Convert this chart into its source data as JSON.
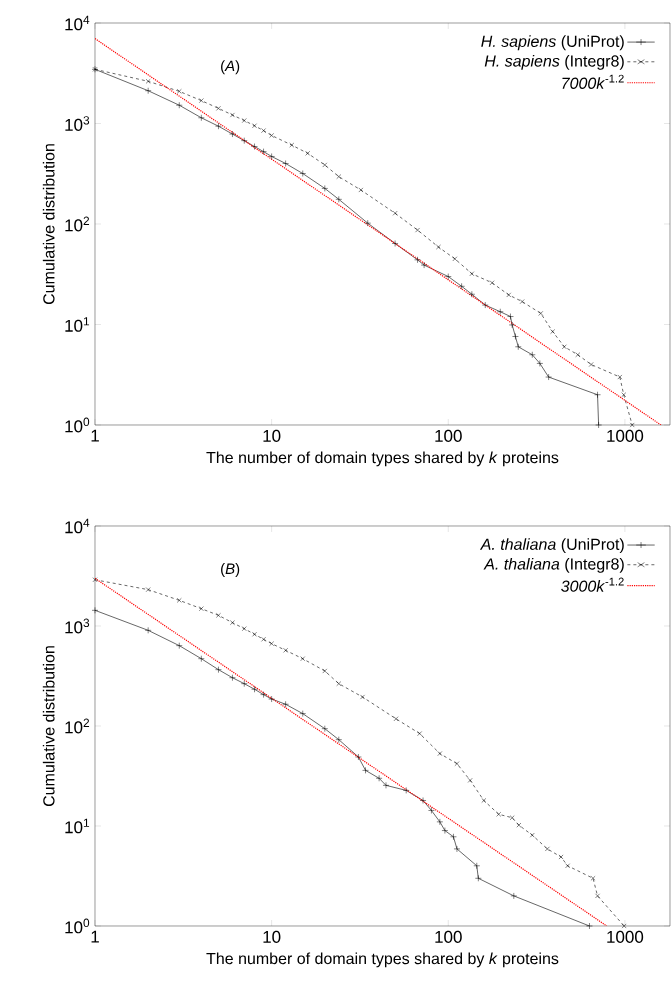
{
  "chart_data": [
    {
      "type": "line",
      "xlabel": "The number of domain types shared by *k* proteins",
      "ylabel": "Cumulative distribution",
      "annotations": [
        "(*A*)"
      ],
      "log": "xy",
      "xlim": [
        1,
        1800
      ],
      "ylim": [
        1,
        10000
      ],
      "xticks": [
        1,
        10,
        100,
        1000
      ],
      "yticks": [
        {
          "value": 1,
          "label": "10$^{0}$"
        },
        {
          "value": 10,
          "label": "10$^{1}$"
        },
        {
          "value": 100,
          "label": "10$^{2}$"
        },
        {
          "value": 1000,
          "label": "10$^{3}$"
        },
        {
          "value": 10000,
          "label": "10$^{4}$"
        }
      ],
      "legend": "top right",
      "grid": false,
      "series": [
        {
          "name": "*H. sapiens* (UniProt)",
          "color": "#000000",
          "marker": "plus",
          "line_style": "solid",
          "x": [
            1,
            2,
            3,
            4,
            5,
            6,
            7,
            8,
            9,
            10,
            12,
            15,
            20,
            24,
            35,
            50,
            67,
            73,
            100,
            119,
            136,
            162,
            197,
            225,
            230,
            240,
            249,
            299,
            330,
            370,
            700,
            710
          ],
          "values": [
            3460,
            2120,
            1520,
            1140,
            940,
            785,
            675,
            590,
            525,
            470,
            400,
            318,
            226,
            176,
            102,
            64,
            44,
            39,
            30,
            24,
            20,
            15.6,
            13.4,
            12,
            9.9,
            7.6,
            6,
            5,
            4.1,
            3,
            2,
            1
          ]
        },
        {
          "name": "*H. sapiens* (Integr8)",
          "color": "#000000",
          "marker": "cross",
          "line_style": "dashed",
          "x": [
            1,
            2,
            3,
            4,
            5,
            6,
            7,
            8,
            9,
            10,
            13,
            16,
            20,
            24,
            32,
            50,
            67,
            88,
            109,
            136,
            177,
            220,
            262,
            334,
            390,
            454,
            541,
            644,
            936,
            985,
            1100
          ],
          "values": [
            3460,
            2630,
            2090,
            1690,
            1415,
            1215,
            1070,
            950,
            850,
            760,
            610,
            505,
            387,
            296,
            218,
            128,
            87,
            59,
            45,
            32,
            26,
            19.7,
            16.9,
            12.9,
            8.5,
            6,
            5,
            4,
            3,
            2,
            1
          ]
        },
        {
          "name": "*7000k*$^{-1.2}$",
          "color": "#ff0000",
          "marker": "none",
          "line_style": "dotted",
          "x": [
            1,
            1600
          ],
          "values": [
            7000,
            1
          ]
        }
      ]
    },
    {
      "type": "line",
      "xlabel": "The number of domain types shared by *k* proteins",
      "ylabel": "Cumulative distribution",
      "annotations": [
        "(*B*)"
      ],
      "log": "xy",
      "xlim": [
        1,
        1800
      ],
      "ylim": [
        1,
        10000
      ],
      "xticks": [
        1,
        10,
        100,
        1000
      ],
      "yticks": [
        {
          "value": 1,
          "label": "10$^{0}$"
        },
        {
          "value": 10,
          "label": "10$^{1}$"
        },
        {
          "value": 100,
          "label": "10$^{2}$"
        },
        {
          "value": 1000,
          "label": "10$^{3}$"
        },
        {
          "value": 10000,
          "label": "10$^{4}$"
        }
      ],
      "legend": "top right",
      "grid": false,
      "series": [
        {
          "name": "*A. thaliana* (UniProt)",
          "color": "#000000",
          "marker": "plus",
          "line_style": "solid",
          "x": [
            1,
            2,
            3,
            4,
            5,
            6,
            7,
            8,
            9,
            10,
            12,
            15,
            20,
            24,
            31,
            34,
            40.6,
            44.4,
            57.8,
            72,
            80.3,
            89.6,
            95.7,
            107,
            112,
            145,
            148,
            235,
            630
          ],
          "values": [
            1435,
            905,
            636,
            471,
            366,
            304,
            265,
            233,
            206,
            186,
            165,
            133,
            94,
            73,
            49,
            36,
            30,
            25.5,
            22.7,
            18,
            14.3,
            11,
            9,
            7.8,
            5.9,
            4,
            3,
            2,
            1
          ]
        },
        {
          "name": "*A. thaliana* (Integr8)",
          "color": "#000000",
          "marker": "cross",
          "line_style": "dashed",
          "x": [
            1,
            2,
            3,
            4,
            5,
            6,
            7,
            8,
            9,
            10,
            12,
            15,
            20,
            24,
            32.7,
            50.6,
            68.9,
            89.6,
            112,
            133,
            159,
            193,
            230,
            251,
            299,
            364,
            435,
            474,
            660,
            700,
            990
          ],
          "values": [
            2900,
            2310,
            1806,
            1490,
            1278,
            1080,
            940,
            826,
            736,
            666,
            571,
            471,
            355,
            265,
            195,
            118,
            84,
            53,
            42,
            28.6,
            18,
            13.1,
            12.1,
            10.2,
            8.1,
            5.9,
            4.9,
            4,
            3,
            2,
            1
          ]
        },
        {
          "name": "*3000k*$^{-1.2}$",
          "color": "#ff0000",
          "marker": "none",
          "line_style": "dotted",
          "x": [
            1,
            790
          ],
          "values": [
            3000,
            1
          ]
        }
      ]
    }
  ]
}
